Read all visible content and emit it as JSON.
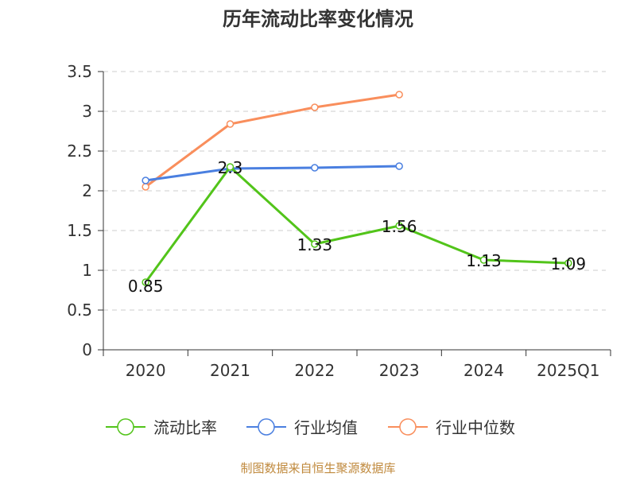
{
  "chart_data": {
    "type": "line",
    "title": "历年流动比率变化情况",
    "categories": [
      "2020",
      "2021",
      "2022",
      "2023",
      "2024",
      "2025Q1"
    ],
    "ylim": [
      0,
      3.5
    ],
    "yticks": [
      "0",
      "0.5",
      "1",
      "1.5",
      "2",
      "2.5",
      "3",
      "3.5"
    ],
    "grid": true,
    "legend_position": "bottom",
    "series": [
      {
        "name": "流动比率",
        "color": "#52c41a",
        "values": [
          0.85,
          2.3,
          1.33,
          1.56,
          1.13,
          1.09
        ],
        "labels": [
          "0.85",
          "2.3",
          "1.33",
          "1.56",
          "1.13",
          "1.09"
        ]
      },
      {
        "name": "行业均值",
        "color": "#4a7fe0",
        "values": [
          2.13,
          2.28,
          2.29,
          2.31,
          null,
          null
        ]
      },
      {
        "name": "行业中位数",
        "color": "#f98e5c",
        "values": [
          2.05,
          2.84,
          3.05,
          3.21,
          null,
          null
        ]
      }
    ]
  },
  "source": "制图数据来自恒生聚源数据库"
}
